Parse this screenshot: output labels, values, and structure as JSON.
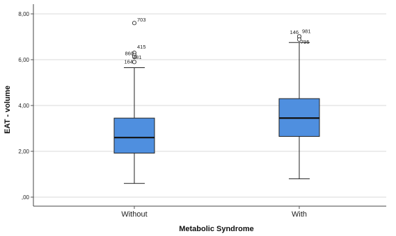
{
  "chart_data": {
    "type": "boxplot",
    "xlabel": "Metabolic Syndrome",
    "ylabel": "EAT - volume",
    "ylim": [
      0,
      8.2
    ],
    "yticks": [
      {
        "value": 0,
        "label": ",00"
      },
      {
        "value": 2,
        "label": "2,00"
      },
      {
        "value": 4,
        "label": "4,00"
      },
      {
        "value": 6,
        "label": "6,00"
      },
      {
        "value": 8,
        "label": "8,00"
      }
    ],
    "grid": true,
    "box_color": "#4f8fdf",
    "categories": [
      "Without",
      "With"
    ],
    "boxes": [
      {
        "category": "Without",
        "min": 0.6,
        "q1": 1.92,
        "median": 2.6,
        "q3": 3.45,
        "max": 5.65,
        "outliers": [
          {
            "value": 7.6,
            "label": "703"
          },
          {
            "value": 6.3,
            "label": "415"
          },
          {
            "value": 6.2,
            "label": "860"
          },
          {
            "value": 6.12,
            "label": "481"
          },
          {
            "value": 5.9,
            "label": "164"
          }
        ]
      },
      {
        "category": "With",
        "min": 0.8,
        "q1": 2.65,
        "median": 3.45,
        "q3": 4.3,
        "max": 6.75,
        "outliers": [
          {
            "value": 7.0,
            "label": "146"
          },
          {
            "value": 7.02,
            "label": "981"
          },
          {
            "value": 6.88,
            "label": "795"
          }
        ]
      }
    ]
  }
}
